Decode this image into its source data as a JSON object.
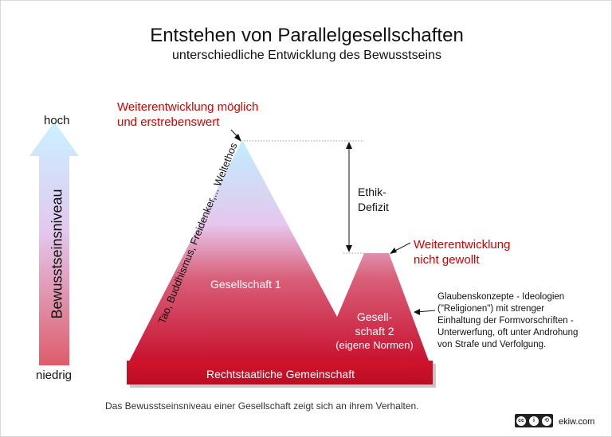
{
  "title": "Entstehen von Parallelgesellschaften",
  "subtitle": "unterschiedliche Entwicklung des Bewusstseins",
  "axis": {
    "label": "Bewusstseinsniveau",
    "high": "hoch",
    "low": "niedrig"
  },
  "peak1": {
    "label": "Gesellschaft 1",
    "annotation_line1": "Weiterentwicklung möglich",
    "annotation_line2": "und erstrebenswert",
    "side_text": "Tao, Buddhismus, Freidenker,... Weltethos"
  },
  "peak2": {
    "label_line1": "Gesell-",
    "label_line2": "schaft 2",
    "label_line3": "(eigene Normen)",
    "annotation_line1": "Weiterentwicklung",
    "annotation_line2": "nicht gewollt",
    "description": [
      "Glaubenskonzepte - Ideologien",
      "(\"Religionen\") mit strenger",
      "Einhaltung der Formvorschriften -",
      "Unterwerfung, oft unter Androhung",
      "von Strafe und Verfolgung."
    ]
  },
  "gap": {
    "line1": "Ethik-",
    "line2": "Defizit"
  },
  "base": {
    "label": "Rechtstaatliche Gemeinschaft"
  },
  "footer": {
    "caption": "Das Bewusstseinsniveau einer Gesellschaft zeigt sich an ihrem Verhalten.",
    "site": "ekiw.com",
    "license_icon": "creative-commons-by-sa-icon"
  },
  "colors": {
    "peak_top": "#bfeeff",
    "peak_mid": "#e8c8ec",
    "peak_bottom": "#c8102e",
    "base": "#c8102e",
    "annotation": "#d40000"
  }
}
